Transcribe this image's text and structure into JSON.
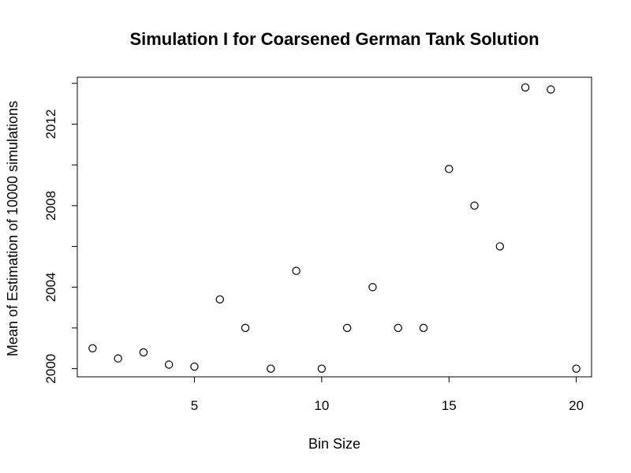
{
  "chart_data": {
    "type": "scatter",
    "title": "Simulation I for Coarsened German Tank Solution",
    "xlabel": "Bin Size",
    "ylabel": "Mean of Estimation of 10000 simulations",
    "xlim": [
      0.4,
      20.6
    ],
    "ylim": [
      1999.6,
      2014.3
    ],
    "xticks": [
      5,
      10,
      15,
      20
    ],
    "xtick_labels": [
      "5",
      "10",
      "15",
      "20"
    ],
    "yticks": [
      2000,
      2002,
      2004,
      2006,
      2008,
      2010,
      2012,
      2014
    ],
    "ytick_labels": [
      "2000",
      "2004",
      "2008",
      "2012"
    ],
    "ytick_label_values": [
      2000,
      2004,
      2008,
      2012
    ],
    "grid": false,
    "legend": "none",
    "marker": "open-circle",
    "color": "#000000",
    "x": [
      1,
      2,
      3,
      4,
      5,
      6,
      7,
      8,
      9,
      10,
      11,
      12,
      13,
      14,
      15,
      16,
      17,
      18,
      19,
      20
    ],
    "y": [
      2001.0,
      2000.5,
      2000.8,
      2000.2,
      2000.1,
      2003.4,
      2002.0,
      2000.0,
      2004.8,
      2000.0,
      2002.0,
      2004.0,
      2002.0,
      2002.0,
      2009.8,
      2008.0,
      2006.0,
      2013.8,
      2013.7,
      2000.0
    ]
  }
}
